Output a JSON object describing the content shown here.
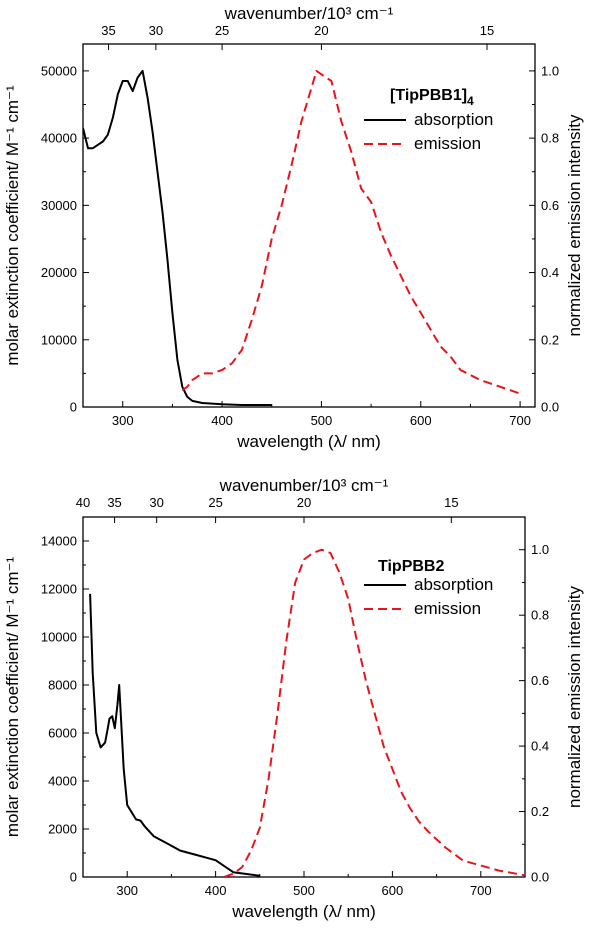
{
  "chart_data": [
    {
      "type": "line",
      "title": "[TipPBB1]",
      "title_subscript": "4",
      "xlabel": "wavelength (λ/ nm)",
      "ylabel": "molar extinction coefficient/ M⁻¹ cm⁻¹",
      "y2label": "normalized emission intensity",
      "top_label": "wavenumber/10³ cm⁻¹",
      "xlim": [
        260,
        715
      ],
      "ylim": [
        0,
        54000
      ],
      "y2lim": [
        0,
        1.08
      ],
      "x_ticks": [
        300,
        400,
        500,
        600,
        700
      ],
      "x_tick_labels": [
        "300",
        "400",
        "500",
        "600",
        "700"
      ],
      "y_ticks": [
        0,
        10000,
        20000,
        30000,
        40000,
        50000
      ],
      "y_tick_labels": [
        "0",
        "10000",
        "20000",
        "30000",
        "40000",
        "50000"
      ],
      "y2_ticks": [
        0,
        0.2,
        0.4,
        0.6,
        0.8,
        1.0
      ],
      "y2_tick_labels": [
        "0.0",
        "0.2",
        "0.4",
        "0.6",
        "0.8",
        "1.0"
      ],
      "top_ticks": [
        35,
        30,
        25,
        20,
        15
      ],
      "top_tick_labels": [
        "35",
        "30",
        "25",
        "20",
        "15"
      ],
      "legend_position": "top-right",
      "series": [
        {
          "name": "absorption",
          "axis": "left",
          "color": "#000000",
          "dash": "solid",
          "x": [
            260,
            265,
            270,
            275,
            280,
            285,
            290,
            295,
            300,
            305,
            310,
            315,
            320,
            325,
            330,
            335,
            340,
            345,
            350,
            355,
            360,
            365,
            370,
            380,
            400,
            420,
            450
          ],
          "y": [
            41500,
            38500,
            38500,
            39000,
            39500,
            40500,
            43000,
            46500,
            48500,
            48500,
            47000,
            49000,
            50000,
            46000,
            41000,
            35000,
            29000,
            22000,
            14000,
            7000,
            3000,
            1500,
            900,
            600,
            400,
            300,
            300
          ]
        },
        {
          "name": "emission",
          "axis": "right",
          "color": "#e8141a",
          "dash": "dashed",
          "x": [
            360,
            365,
            370,
            380,
            390,
            400,
            410,
            420,
            430,
            440,
            450,
            460,
            470,
            480,
            490,
            495,
            500,
            510,
            520,
            530,
            540,
            550,
            560,
            570,
            580,
            590,
            600,
            610,
            620,
            630,
            640,
            660,
            680,
            700
          ],
          "y": [
            0.05,
            0.06,
            0.08,
            0.1,
            0.1,
            0.11,
            0.13,
            0.17,
            0.26,
            0.36,
            0.5,
            0.6,
            0.72,
            0.85,
            0.95,
            1.0,
            0.99,
            0.97,
            0.85,
            0.76,
            0.65,
            0.61,
            0.52,
            0.45,
            0.39,
            0.33,
            0.28,
            0.23,
            0.18,
            0.15,
            0.11,
            0.08,
            0.06,
            0.04
          ]
        }
      ]
    },
    {
      "type": "line",
      "title": "TipPBB2",
      "title_subscript": "",
      "xlabel": "wavelength (λ/ nm)",
      "ylabel": "molar extinction coefficient/ M⁻¹ cm⁻¹",
      "y2label": "normalized emission intensity",
      "top_label": "wavenumber/10³ cm⁻¹",
      "xlim": [
        250,
        750
      ],
      "ylim": [
        0,
        15000
      ],
      "y2lim": [
        0,
        1.1
      ],
      "x_ticks": [
        300,
        400,
        500,
        600,
        700
      ],
      "x_tick_labels": [
        "300",
        "400",
        "500",
        "600",
        "700"
      ],
      "y_ticks": [
        0,
        2000,
        4000,
        6000,
        8000,
        10000,
        12000,
        14000
      ],
      "y_tick_labels": [
        "0",
        "2000",
        "4000",
        "6000",
        "8000",
        "10000",
        "12000",
        "14000"
      ],
      "y2_ticks": [
        0,
        0.2,
        0.4,
        0.6,
        0.8,
        1.0
      ],
      "y2_tick_labels": [
        "0.0",
        "0.2",
        "0.4",
        "0.6",
        "0.8",
        "1.0"
      ],
      "top_ticks": [
        40,
        35,
        30,
        25,
        20,
        15
      ],
      "top_tick_labels": [
        "40",
        "35",
        "30",
        "25",
        "20",
        "15"
      ],
      "legend_position": "top-right",
      "series": [
        {
          "name": "absorption",
          "axis": "left",
          "color": "#000000",
          "dash": "solid",
          "x": [
            258,
            261,
            265,
            270,
            275,
            278,
            280,
            283,
            286,
            289,
            291,
            293,
            296,
            300,
            305,
            310,
            315,
            320,
            330,
            340,
            350,
            360,
            370,
            380,
            390,
            400,
            410,
            420,
            450
          ],
          "y": [
            11800,
            8500,
            6000,
            5400,
            5600,
            6200,
            6600,
            6700,
            6200,
            7200,
            8000,
            6600,
            4500,
            3000,
            2700,
            2400,
            2350,
            2100,
            1700,
            1500,
            1300,
            1100,
            1000,
            900,
            800,
            700,
            450,
            200,
            50
          ]
        },
        {
          "name": "emission",
          "axis": "right",
          "color": "#e8141a",
          "dash": "dashed",
          "x": [
            410,
            420,
            430,
            440,
            450,
            460,
            470,
            480,
            490,
            500,
            510,
            520,
            530,
            540,
            550,
            560,
            570,
            580,
            590,
            600,
            610,
            620,
            630,
            640,
            660,
            680,
            700,
            720,
            740,
            750
          ],
          "y": [
            0.0,
            0.01,
            0.03,
            0.08,
            0.15,
            0.3,
            0.5,
            0.72,
            0.9,
            0.97,
            0.99,
            1.0,
            0.99,
            0.93,
            0.85,
            0.72,
            0.6,
            0.5,
            0.4,
            0.33,
            0.26,
            0.21,
            0.17,
            0.14,
            0.09,
            0.05,
            0.035,
            0.02,
            0.01,
            0.005
          ]
        }
      ]
    }
  ]
}
